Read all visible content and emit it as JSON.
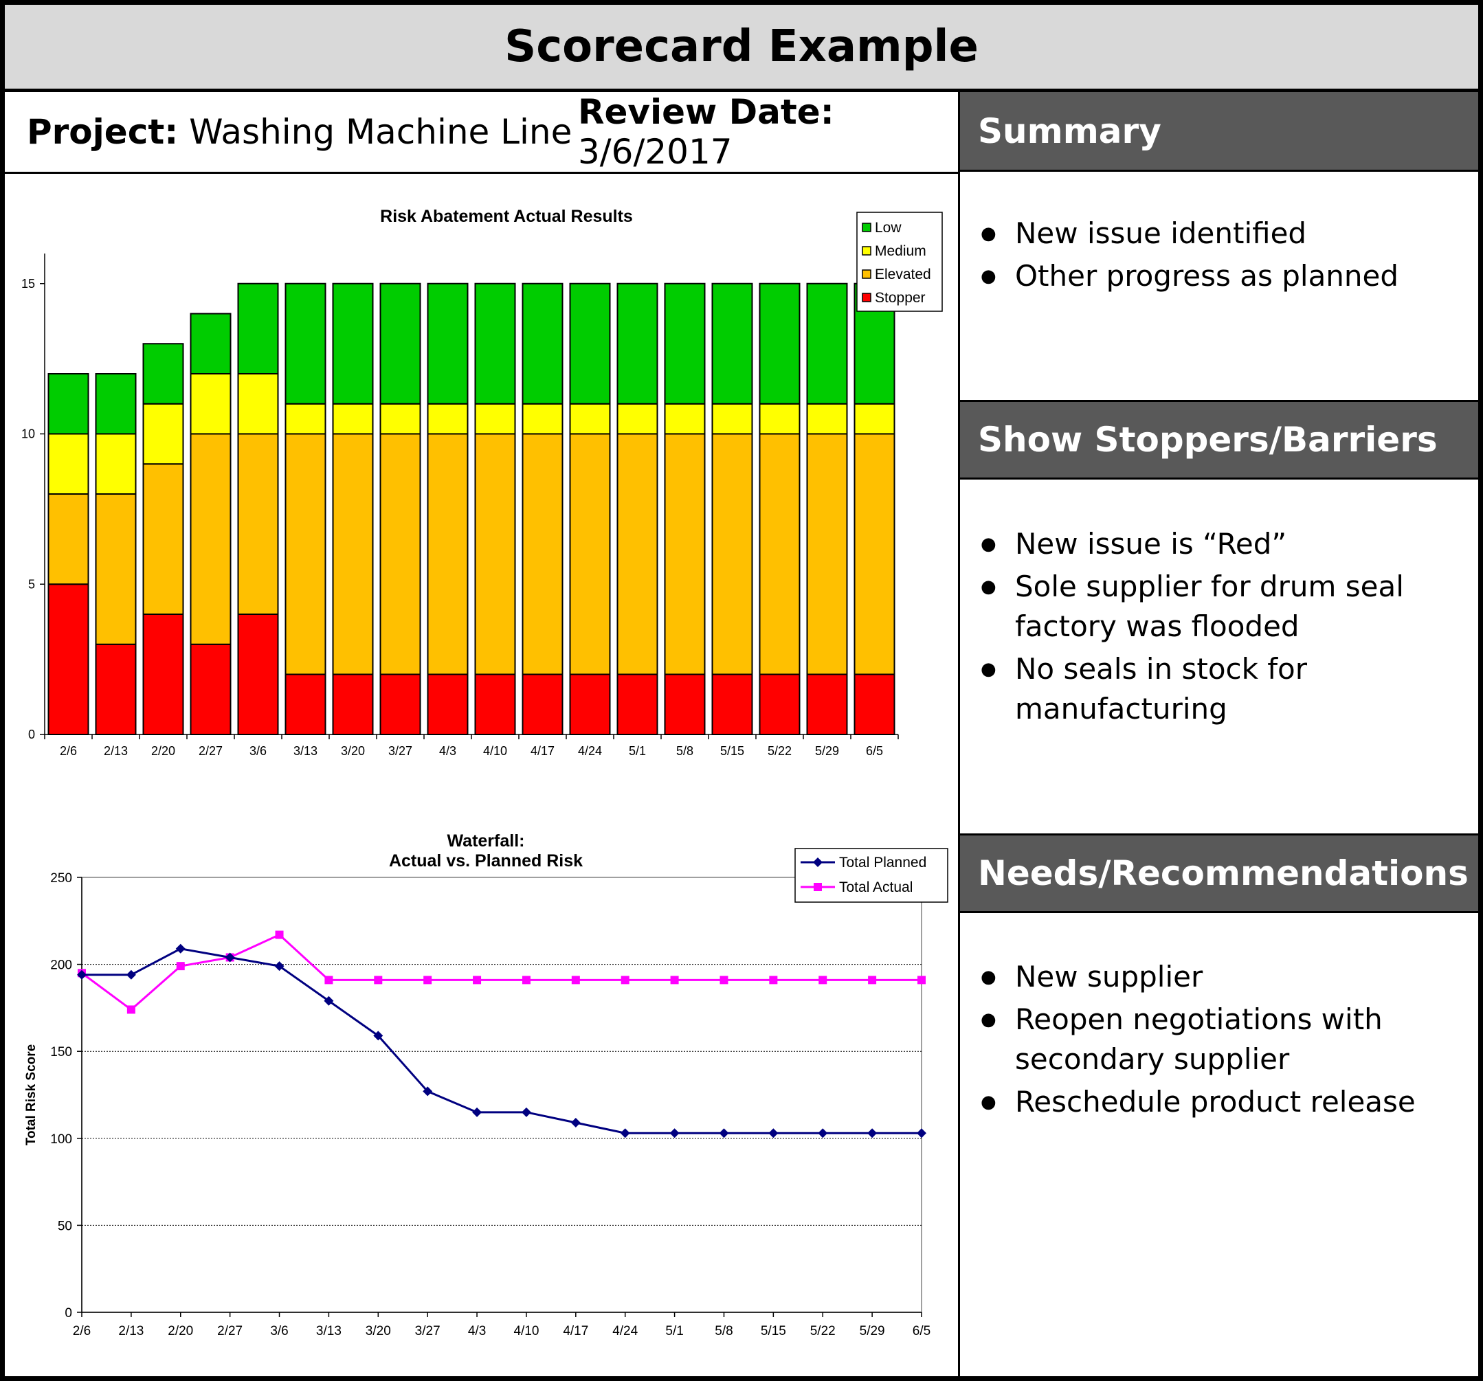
{
  "header": {
    "title": "Scorecard Example"
  },
  "info": {
    "project_label": "Project:",
    "project_value": "Washing Machine Line",
    "date_label": "Review Date:",
    "date_value": "3/6/2017"
  },
  "panels": {
    "summary": {
      "title": "Summary",
      "bullets": [
        "New issue identified",
        "Other progress as planned"
      ]
    },
    "stoppers": {
      "title": "Show Stoppers/Barriers",
      "bullets": [
        "New issue is “Red”",
        "Sole supplier for drum seal factory was flooded",
        "No seals in stock for manufacturing"
      ]
    },
    "needs": {
      "title": "Needs/Recommendations",
      "bullets": [
        "New supplier",
        "Reopen negotiations with secondary supplier",
        "Reschedule product release"
      ]
    }
  },
  "colors": {
    "low": "#00cc00",
    "medium": "#ffff00",
    "elevated": "#ffc000",
    "stopper": "#ff0000",
    "planned": "#000080",
    "actual": "#ff00ff",
    "header_bg": "#595959",
    "title_bg": "#d9d9d9"
  },
  "chart_data": [
    {
      "type": "bar",
      "stacked": true,
      "title": "Risk Abatement Actual Results",
      "categories": [
        "2/6",
        "2/13",
        "2/20",
        "2/27",
        "3/6",
        "3/13",
        "3/20",
        "3/27",
        "4/3",
        "4/10",
        "4/17",
        "4/24",
        "5/1",
        "5/8",
        "5/15",
        "5/22",
        "5/29",
        "6/5"
      ],
      "series": [
        {
          "name": "Stopper",
          "color": "#ff0000",
          "values": [
            5,
            3,
            4,
            3,
            4,
            2,
            2,
            2,
            2,
            2,
            2,
            2,
            2,
            2,
            2,
            2,
            2,
            2
          ]
        },
        {
          "name": "Elevated",
          "color": "#ffc000",
          "values": [
            3,
            5,
            5,
            7,
            6,
            8,
            8,
            8,
            8,
            8,
            8,
            8,
            8,
            8,
            8,
            8,
            8,
            8
          ]
        },
        {
          "name": "Medium",
          "color": "#ffff00",
          "values": [
            2,
            2,
            2,
            2,
            2,
            1,
            1,
            1,
            1,
            1,
            1,
            1,
            1,
            1,
            1,
            1,
            1,
            1
          ]
        },
        {
          "name": "Low",
          "color": "#00cc00",
          "values": [
            2,
            2,
            2,
            2,
            3,
            4,
            4,
            4,
            4,
            4,
            4,
            4,
            4,
            4,
            4,
            4,
            4,
            4
          ]
        }
      ],
      "legend_order": [
        "Low",
        "Medium",
        "Elevated",
        "Stopper"
      ],
      "yticks": [
        0,
        5,
        10,
        15
      ],
      "ylim": [
        0,
        16
      ],
      "legend_position": "top-right",
      "grid": false
    },
    {
      "type": "line",
      "title": "Waterfall:",
      "subtitle": "Actual vs. Planned Risk",
      "ylabel": "Total Risk Score",
      "categories": [
        "2/6",
        "2/13",
        "2/20",
        "2/27",
        "3/6",
        "3/13",
        "3/20",
        "3/27",
        "4/3",
        "4/10",
        "4/17",
        "4/24",
        "5/1",
        "5/8",
        "5/15",
        "5/22",
        "5/29",
        "6/5"
      ],
      "series": [
        {
          "name": "Total Planned",
          "color": "#000080",
          "marker": "diamond",
          "values": [
            194,
            194,
            209,
            204,
            199,
            179,
            159,
            127,
            115,
            115,
            109,
            103,
            103,
            103,
            103,
            103,
            103,
            103
          ]
        },
        {
          "name": "Total Actual",
          "color": "#ff00ff",
          "marker": "square",
          "values": [
            195,
            174,
            199,
            204,
            217,
            191,
            191,
            191,
            191,
            191,
            191,
            191,
            191,
            191,
            191,
            191,
            191,
            191
          ]
        }
      ],
      "yticks": [
        0,
        50,
        100,
        150,
        200,
        250
      ],
      "ylim": [
        0,
        250
      ],
      "legend_position": "top-right",
      "grid": true
    }
  ]
}
